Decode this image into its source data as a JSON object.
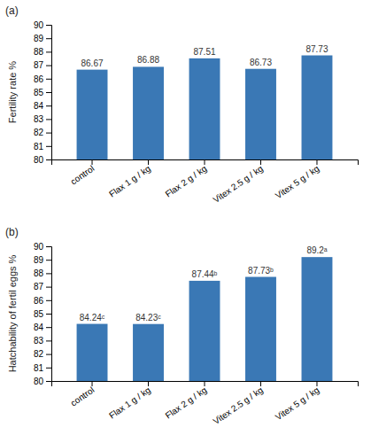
{
  "chart_data": [
    {
      "type": "bar",
      "title": "(a)",
      "categories": [
        "control",
        "Flax 1 g / kg",
        "Flax 2 g / kg",
        "Vitex 2.5 g / kg",
        "Vitex 5 g / kg"
      ],
      "values": [
        86.67,
        86.88,
        87.51,
        86.73,
        87.73
      ],
      "color": "#3A78B5",
      "ylabel": "Fertility rate %",
      "ylim": [
        80,
        90
      ],
      "yticks": [
        80,
        81,
        82,
        83,
        84,
        85,
        86,
        87,
        88,
        89,
        90
      ],
      "data_labels": true
    },
    {
      "type": "bar",
      "title": "(b)",
      "categories": [
        "control",
        "Flax 1 g / kg",
        "Flax 2 g / kg",
        "Vitex 2.5 g / kg",
        "Vitex 5 g / kg"
      ],
      "values": [
        84.24,
        84.23,
        87.44,
        87.73,
        89.2
      ],
      "value_labels": [
        "84.24ᶜ",
        "84.23ᶜ",
        "87.44ᵇ",
        "87.73ᵇ",
        "89.2ᵃ"
      ],
      "color": "#3A78B5",
      "ylabel": "Hatchability of fertil eggs %",
      "ylim": [
        80,
        90
      ],
      "yticks": [
        80,
        81,
        82,
        83,
        84,
        85,
        86,
        87,
        88,
        89,
        90
      ],
      "data_labels": true
    }
  ]
}
